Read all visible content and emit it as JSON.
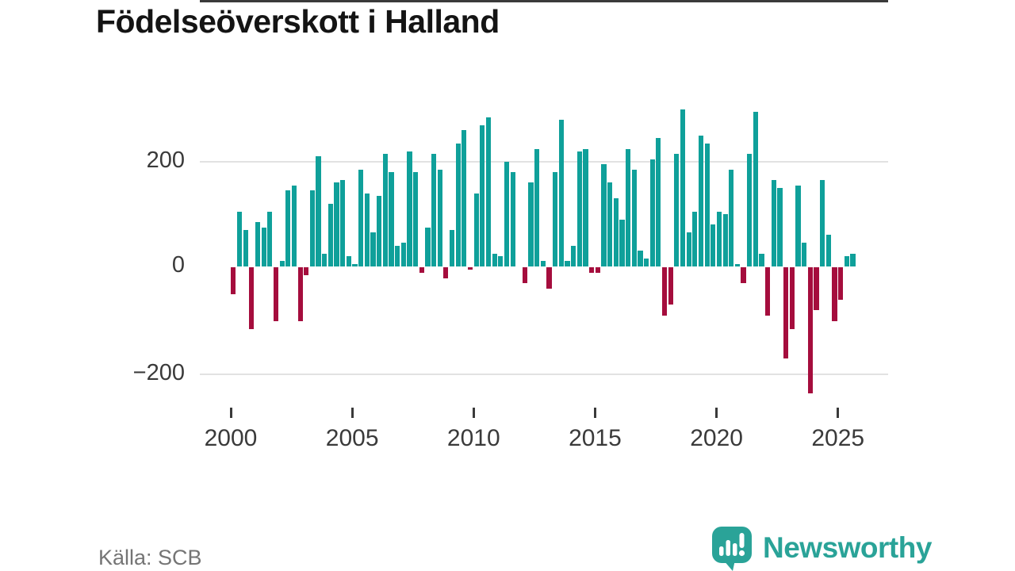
{
  "chart": {
    "title": "Födelseöverskott i Halland",
    "source": "Källa: SCB",
    "brand": {
      "name": "Newsworthy"
    }
  },
  "chart_data": {
    "type": "bar",
    "title": "Födelseöverskott i Halland",
    "source": "Källa: SCB",
    "frequency": "quarterly",
    "x_start": "2000-Q1",
    "x_end": "2025-Q3",
    "x_ticks": [
      2000,
      2005,
      2010,
      2015,
      2020,
      2025
    ],
    "y_ticks": [
      200,
      0,
      -200
    ],
    "ylim": [
      -260,
      320
    ],
    "grid": "horizontal",
    "legend": "none",
    "positive_color": "#0fa09a",
    "negative_color": "#a50d3d",
    "values": [
      -50,
      105,
      70,
      -115,
      85,
      75,
      105,
      -100,
      10,
      145,
      155,
      -100,
      -15,
      145,
      210,
      25,
      120,
      160,
      165,
      20,
      5,
      185,
      140,
      65,
      135,
      215,
      180,
      40,
      45,
      220,
      180,
      -10,
      75,
      215,
      185,
      -20,
      70,
      235,
      260,
      -5,
      140,
      270,
      285,
      25,
      20,
      200,
      180,
      0,
      -30,
      160,
      225,
      10,
      -40,
      180,
      280,
      10,
      40,
      220,
      225,
      -10,
      -10,
      195,
      160,
      130,
      90,
      225,
      185,
      30,
      15,
      205,
      245,
      -90,
      -70,
      215,
      300,
      65,
      105,
      250,
      235,
      80,
      105,
      100,
      185,
      5,
      -30,
      215,
      295,
      25,
      -90,
      165,
      150,
      -170,
      -115,
      155,
      45,
      -235,
      -80,
      165,
      60,
      -100,
      -60,
      20,
      25
    ]
  }
}
